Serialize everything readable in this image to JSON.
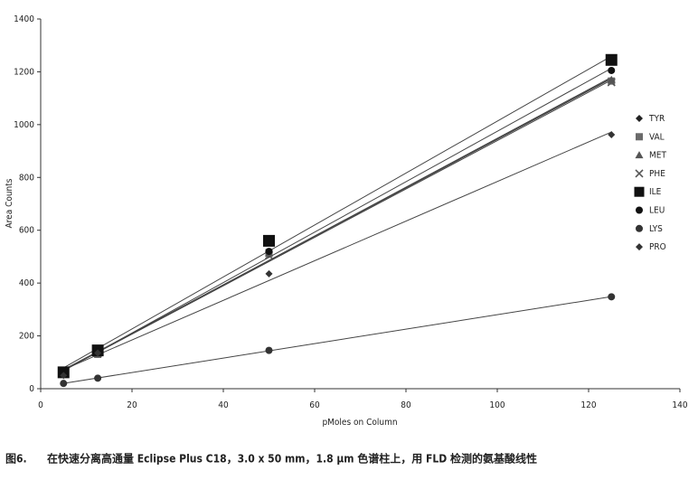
{
  "chart_data": {
    "type": "scatter",
    "x_label": "pMoles on Column",
    "y_label": "Area Counts",
    "caption_label": "图6.",
    "caption": "在快速分离高通量 Eclipse Plus C18，3.0 x 50 mm，1.8 μm 色谱柱上，用 FLD 检测的氨基酸线性",
    "x": [
      5,
      12.5,
      50,
      125
    ],
    "series": [
      {
        "name": "TYR",
        "color": "#222222",
        "marker": "diamond",
        "values": [
          62,
          135,
          510,
          1165
        ]
      },
      {
        "name": "VAL",
        "color": "#6a6a6a",
        "marker": "square",
        "values": [
          60,
          130,
          515,
          1165
        ]
      },
      {
        "name": "MET",
        "color": "#555555",
        "marker": "triangle",
        "values": [
          60,
          132,
          512,
          1170
        ]
      },
      {
        "name": "PHE",
        "color": "#555555",
        "marker": "x",
        "values": [
          58,
          134,
          505,
          1160
        ]
      },
      {
        "name": "ILE",
        "color": "#111111",
        "marker": "big-square",
        "values": [
          62,
          145,
          560,
          1245
        ]
      },
      {
        "name": "LEU",
        "color": "#111111",
        "marker": "circle",
        "values": [
          55,
          138,
          520,
          1205
        ]
      },
      {
        "name": "LYS",
        "color": "#333333",
        "marker": "circle",
        "values": [
          20,
          40,
          145,
          348
        ]
      },
      {
        "name": "PRO",
        "color": "#333333",
        "marker": "diamond",
        "values": [
          50,
          135,
          435,
          962
        ]
      }
    ],
    "xlim": [
      0,
      140
    ],
    "xticks": [
      0,
      20,
      40,
      60,
      80,
      100,
      120,
      140
    ],
    "ylim": [
      0,
      1400
    ],
    "yticks": [
      0,
      200,
      400,
      600,
      800,
      1000,
      1200,
      1400
    ],
    "trendline": true,
    "grid": false,
    "legend": "right"
  }
}
